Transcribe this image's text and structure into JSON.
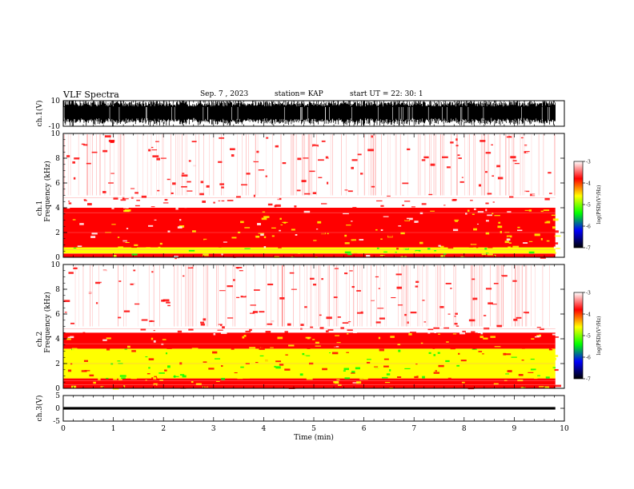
{
  "header": {
    "title": "VLF Spectra",
    "date": "Sep. 7 , 2023",
    "station": "station= KAP",
    "start": "start  UT =   22: 30: 1"
  },
  "colors": {
    "spectrum": [
      "#ffffff",
      "#ff0000",
      "#ffff00",
      "#00ff00",
      "#0000ff",
      "#000000"
    ],
    "waveform": "#000000"
  },
  "chart_data": [
    {
      "type": "line",
      "panel": "ch1-waveform",
      "ylabel": "ch.1(V)",
      "ylim": [
        -10,
        10
      ],
      "y_ticks": [
        "10",
        "-10"
      ],
      "xlim": [
        0,
        10
      ],
      "series": [
        {
          "values_range": [
            -10,
            10
          ],
          "x_end": 9.82
        }
      ]
    },
    {
      "type": "heatmap",
      "panel": "ch1-spectrogram",
      "ylabel": "Frequency (kHz)",
      "channel_label": "ch.1",
      "ylim": [
        0,
        10
      ],
      "xlim": [
        0,
        10
      ],
      "y_ticks": [
        "0",
        "2",
        "4",
        "6",
        "8",
        "10"
      ],
      "x_end": 9.82,
      "colorbar": {
        "label": "log(PSD)(V²/Hz)",
        "range": [
          -7,
          -3
        ],
        "ticks": [
          "-3",
          "-4",
          "-5",
          "-6",
          "-7"
        ]
      },
      "bands_khz": [
        {
          "from": 0.0,
          "to": 0.3,
          "level": -4.0
        },
        {
          "from": 0.3,
          "to": 0.8,
          "level": -4.8
        },
        {
          "from": 0.8,
          "to": 4.0,
          "level": -3.9
        },
        {
          "from": 4.0,
          "to": 5.0,
          "level": -3.4
        },
        {
          "from": 5.0,
          "to": 10.0,
          "level": -3.0
        }
      ]
    },
    {
      "type": "heatmap",
      "panel": "ch2-spectrogram",
      "ylabel": "Frequency (kHz)",
      "channel_label": "ch.2",
      "ylim": [
        0,
        10
      ],
      "xlim": [
        0,
        10
      ],
      "y_ticks": [
        "0",
        "2",
        "4",
        "6",
        "8",
        "10"
      ],
      "x_end": 9.82,
      "colorbar": {
        "label": "log(PSD)(V²/Hz)",
        "range": [
          -7,
          -3
        ],
        "ticks": [
          "-3",
          "-4",
          "-5",
          "-6",
          "-7"
        ]
      },
      "bands_khz": [
        {
          "from": 0.0,
          "to": 0.8,
          "level": -4.0
        },
        {
          "from": 0.8,
          "to": 3.2,
          "level": -4.6
        },
        {
          "from": 3.2,
          "to": 4.5,
          "level": -4.0
        },
        {
          "from": 4.5,
          "to": 5.5,
          "level": -3.4
        },
        {
          "from": 5.5,
          "to": 10.0,
          "level": -3.0
        }
      ]
    },
    {
      "type": "line",
      "panel": "ch3-waveform",
      "ylabel": "ch.3(V)",
      "ylim": [
        -5,
        5
      ],
      "y_ticks": [
        "5",
        "0",
        "-5"
      ],
      "xlim": [
        0,
        10
      ],
      "series": [
        {
          "values_range": [
            -0.5,
            0.5
          ],
          "x_end": 9.82
        }
      ]
    }
  ],
  "x_axis": {
    "label": "Time (min)",
    "ticks": [
      "0",
      "1",
      "2",
      "3",
      "4",
      "5",
      "6",
      "7",
      "8",
      "9",
      "10"
    ]
  }
}
